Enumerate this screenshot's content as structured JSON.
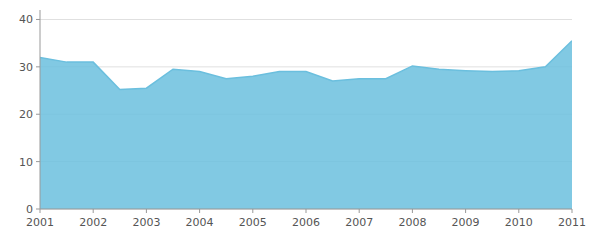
{
  "chart_data": {
    "type": "area",
    "x": [
      2001,
      2001.5,
      2002,
      2002.5,
      2003,
      2003.5,
      2004,
      2004.5,
      2005,
      2005.5,
      2006,
      2006.5,
      2007,
      2007.5,
      2008,
      2008.5,
      2009,
      2009.5,
      2010,
      2010.5,
      2011
    ],
    "values": [
      32.0,
      31.0,
      31.0,
      25.2,
      25.5,
      29.5,
      29.0,
      27.5,
      28.0,
      29.0,
      29.0,
      27.0,
      27.5,
      27.5,
      30.2,
      29.5,
      29.2,
      29.0,
      29.2,
      30.0,
      35.5
    ],
    "color": "#6BBFDE",
    "xlim": [
      2001,
      2011
    ],
    "xticks": [
      2001,
      2002,
      2003,
      2004,
      2005,
      2006,
      2007,
      2008,
      2009,
      2010,
      2011
    ],
    "ylim": [
      0,
      42
    ],
    "yticks": [
      0,
      10,
      20,
      30,
      40
    ],
    "grid": true
  }
}
